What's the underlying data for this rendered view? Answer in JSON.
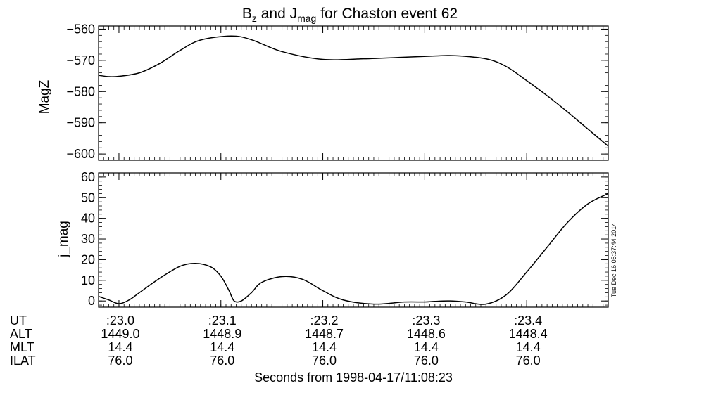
{
  "title": {
    "prefix": "B",
    "sub1": "z",
    "mid": " and J",
    "sub2": "mag",
    "suffix": " for Chaston event 62"
  },
  "timestamp": "Tue Dec 16 05:37:44 2014",
  "xlabel": "Seconds from 1998-04-17/11:08:23",
  "chart_data": [
    {
      "type": "line",
      "ylabel": "MagZ",
      "x_range": [
        22.98,
        23.48
      ],
      "ylim": [
        -602,
        -559
      ],
      "yticks": [
        -560,
        -570,
        -580,
        -590,
        -600
      ],
      "ytick_labels": [
        "−560",
        "−570",
        "−580",
        "−590",
        "−600"
      ],
      "series": [
        {
          "x": [
            22.98,
            22.99,
            23.0,
            23.02,
            23.04,
            23.06,
            23.08,
            23.11,
            23.13,
            23.16,
            23.2,
            23.24,
            23.28,
            23.31,
            23.33,
            23.36,
            23.38,
            23.4,
            23.42,
            23.44,
            23.46,
            23.48
          ],
          "y": [
            -574.8,
            -575.2,
            -575.1,
            -574.0,
            -571.0,
            -566.8,
            -563.5,
            -562.2,
            -563.4,
            -567.2,
            -569.7,
            -569.5,
            -569.0,
            -568.6,
            -568.5,
            -569.5,
            -572.0,
            -576.5,
            -581.3,
            -586.5,
            -592.0,
            -597.5
          ]
        }
      ]
    },
    {
      "type": "line",
      "ylabel": "j_mag",
      "x_range": [
        22.98,
        23.48
      ],
      "ylim": [
        -3,
        62
      ],
      "yticks": [
        0,
        10,
        20,
        30,
        40,
        50,
        60
      ],
      "ytick_labels": [
        "0",
        "10",
        "20",
        "30",
        "40",
        "50",
        "60"
      ],
      "series": [
        {
          "x": [
            22.98,
            22.99,
            23.0,
            23.01,
            23.02,
            23.04,
            23.06,
            23.075,
            23.09,
            23.1,
            23.108,
            23.113,
            23.12,
            23.13,
            23.14,
            23.16,
            23.18,
            23.2,
            23.22,
            23.25,
            23.28,
            23.3,
            23.31,
            23.325,
            23.34,
            23.36,
            23.38,
            23.4,
            23.42,
            23.44,
            23.46,
            23.48
          ],
          "y": [
            2.2,
            0.5,
            -1.3,
            0.5,
            4.0,
            11.0,
            16.8,
            18.2,
            16.5,
            12.0,
            5.0,
            0.0,
            0.0,
            4.0,
            9.0,
            11.8,
            10.5,
            5.0,
            0.5,
            -1.5,
            -0.5,
            -0.5,
            -0.2,
            0.0,
            -0.5,
            -1.5,
            3.0,
            14.0,
            26.0,
            38.0,
            47.0,
            52.0
          ]
        }
      ]
    }
  ],
  "x_ticks": {
    "values": [
      23.0,
      23.1,
      23.2,
      23.3,
      23.4
    ],
    "ut": [
      ":23.0",
      ":23.1",
      ":23.2",
      ":23.3",
      ":23.4"
    ],
    "alt": [
      "1449.0",
      "1448.9",
      "1448.7",
      "1448.6",
      "1448.4"
    ],
    "mlt": [
      "14.4",
      "14.4",
      "14.4",
      "14.4",
      "14.4"
    ],
    "ilat": [
      "76.0",
      "76.0",
      "76.0",
      "76.0",
      "76.0"
    ]
  },
  "row_labels": [
    "UT",
    "ALT",
    "MLT",
    "ILAT"
  ]
}
